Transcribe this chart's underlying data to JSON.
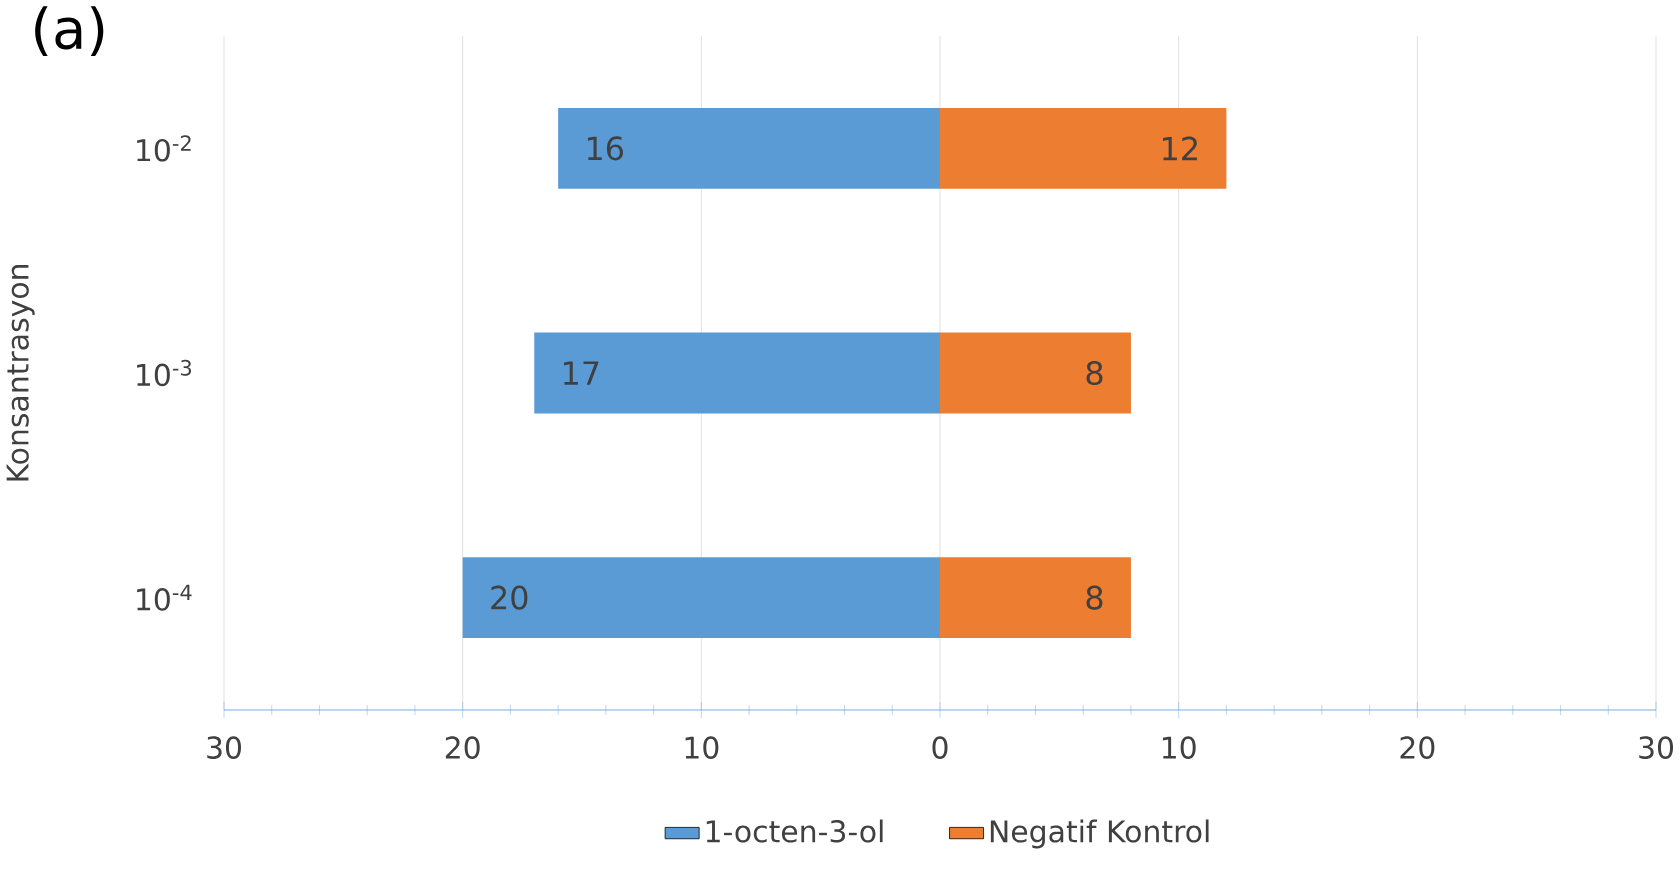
{
  "chart_data": {
    "type": "bar",
    "orientation": "horizontal",
    "title": "(a)",
    "ylabel": "Konsantrasyon",
    "categories": [
      "10$^{-2}$",
      "10$^{-3}$",
      "10$^{-4}$"
    ],
    "series": [
      {
        "name": "1-octen-3-ol",
        "color": "#5b9bd5",
        "values": [
          16,
          17,
          20
        ],
        "base": [
          -16,
          -17,
          -20
        ],
        "value_labels": [
          "16",
          "17",
          "20"
        ]
      },
      {
        "name": "Negatif Kontrol",
        "color": "#ed7d31",
        "values": [
          12,
          8,
          8
        ],
        "value_labels": [
          "12",
          "8",
          "8"
        ]
      }
    ],
    "xlim": [
      -30,
      30
    ],
    "xticks": [
      {
        "value": -30,
        "label": "30"
      },
      {
        "value": -20,
        "label": "20"
      },
      {
        "value": -10,
        "label": "10"
      },
      0,
      10,
      20,
      30
    ],
    "grid": "x",
    "legend": "bottom"
  }
}
